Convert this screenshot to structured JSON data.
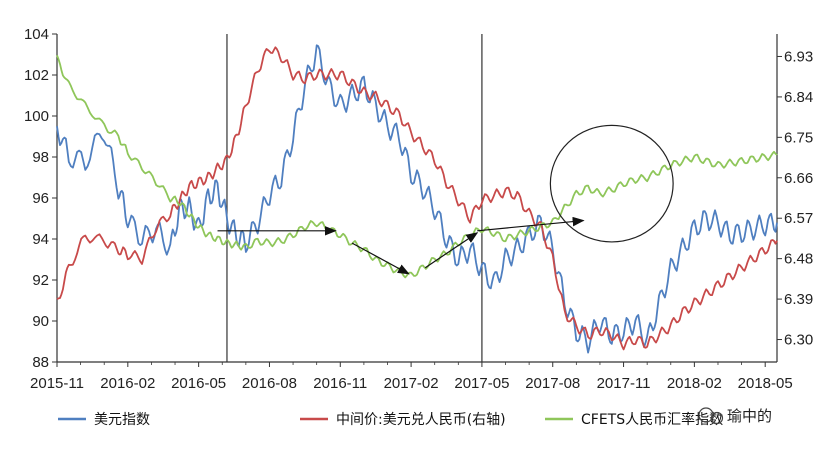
{
  "chart_data": {
    "type": "line",
    "title": "",
    "x_ticks": [
      "2015-11",
      "2016-02",
      "2016-05",
      "2016-08",
      "2016-11",
      "2017-02",
      "2017-05",
      "2017-08",
      "2017-11",
      "2018-02",
      "2018-05"
    ],
    "y_left": {
      "min": 88,
      "max": 104,
      "ticks": [
        "88",
        "90",
        "92",
        "94",
        "96",
        "98",
        "100",
        "102",
        "104"
      ]
    },
    "y_right": {
      "min": 6.25,
      "max": 6.98,
      "ticks": [
        "6.30",
        "6.39",
        "6.48",
        "6.57",
        "6.66",
        "6.75",
        "6.84",
        "6.93"
      ]
    },
    "vertical_markers": [
      "2016-06",
      "2017-05"
    ],
    "series": [
      {
        "name": "美元指数",
        "axis": "left",
        "color": "#4f7fc0",
        "x": [
          0,
          0.5,
          1.2,
          2.0,
          2.6,
          3.0,
          3.6,
          4.2,
          4.8,
          5.2,
          5.6,
          6.0,
          6.4,
          6.8,
          7.2,
          7.6,
          8.0,
          8.5,
          9.0,
          9.5,
          10.0,
          10.5,
          11.0,
          11.5,
          12.0,
          12.5,
          13.0,
          13.5,
          14.0,
          14.5,
          15.0,
          15.5,
          16.0,
          16.5,
          17.0,
          17.5,
          18.0,
          18.5,
          19.0,
          19.5,
          20.0,
          20.5,
          21.0,
          21.5,
          22.0,
          22.5,
          23.0,
          23.5,
          24.0,
          24.5,
          25.0,
          25.5,
          26.0,
          26.5,
          27.0,
          27.5,
          28.0,
          28.5,
          29.0,
          29.5,
          30.0,
          30.5
        ],
        "values": [
          99.5,
          98.0,
          97.8,
          99.3,
          96.5,
          95.0,
          94.0,
          94.5,
          93.5,
          95.5,
          95.5,
          94.5,
          96.0,
          96.5,
          95.0,
          94.2,
          93.8,
          94.8,
          96.2,
          97.0,
          99.0,
          101.5,
          103.2,
          101.5,
          100.5,
          101.0,
          101.5,
          100.5,
          99.5,
          99.0,
          97.2,
          96.5,
          95.5,
          94.0,
          93.0,
          93.5,
          92.5,
          91.8,
          93.0,
          93.5,
          94.2,
          94.8,
          93.5,
          91.0,
          89.5,
          89.0,
          90.0,
          89.3,
          89.5,
          90.0,
          89.0,
          90.8,
          92.5,
          93.5,
          94.5,
          95.0,
          94.8,
          94.2,
          94.3,
          94.5,
          94.7,
          94.8
        ]
      },
      {
        "name": "中间价:美元兑人民币(右轴)",
        "axis": "right",
        "color": "#c84a4a",
        "x": [
          0,
          0.5,
          1.2,
          2.0,
          2.6,
          3.0,
          3.6,
          4.2,
          4.8,
          5.2,
          5.6,
          6.0,
          6.4,
          6.8,
          7.2,
          7.6,
          8.0,
          8.5,
          9.0,
          9.5,
          10.0,
          10.5,
          11.0,
          11.5,
          12.0,
          12.5,
          13.0,
          13.5,
          14.0,
          14.5,
          15.0,
          15.5,
          16.0,
          16.5,
          17.0,
          17.5,
          18.0,
          18.5,
          19.0,
          19.5,
          20.0,
          20.5,
          21.0,
          21.5,
          22.0,
          22.5,
          23.0,
          23.5,
          24.0,
          24.5,
          25.0,
          25.5,
          26.0,
          26.5,
          27.0,
          27.5,
          28.0,
          28.5,
          29.0,
          29.5,
          30.0,
          30.5
        ],
        "values": [
          6.38,
          6.46,
          6.53,
          6.52,
          6.5,
          6.49,
          6.48,
          6.55,
          6.58,
          6.61,
          6.64,
          6.65,
          6.66,
          6.68,
          6.7,
          6.75,
          6.82,
          6.9,
          6.95,
          6.93,
          6.89,
          6.88,
          6.89,
          6.89,
          6.89,
          6.87,
          6.85,
          6.84,
          6.82,
          6.8,
          6.76,
          6.73,
          6.7,
          6.65,
          6.61,
          6.57,
          6.61,
          6.62,
          6.63,
          6.62,
          6.58,
          6.55,
          6.48,
          6.36,
          6.33,
          6.31,
          6.32,
          6.31,
          6.29,
          6.3,
          6.29,
          6.31,
          6.33,
          6.36,
          6.38,
          6.4,
          6.42,
          6.44,
          6.46,
          6.48,
          6.5,
          6.52
        ]
      },
      {
        "name": "CFETS人民币汇率指数",
        "axis": "left",
        "color": "#8fc65a",
        "x": [
          0,
          0.5,
          1.2,
          2.0,
          2.6,
          3.0,
          3.6,
          4.2,
          4.8,
          5.2,
          5.6,
          6.0,
          6.4,
          6.8,
          7.2,
          7.6,
          8.0,
          8.5,
          9.0,
          9.5,
          10.0,
          10.5,
          11.0,
          11.5,
          12.0,
          12.5,
          13.0,
          13.5,
          14.0,
          14.5,
          15.0,
          15.5,
          16.0,
          16.5,
          17.0,
          17.5,
          18.0,
          18.5,
          19.0,
          19.5,
          20.0,
          20.5,
          21.0,
          21.5,
          22.0,
          22.5,
          23.0,
          23.5,
          24.0,
          24.5,
          25.0,
          25.5,
          26.0,
          26.5,
          27.0,
          27.5,
          28.0,
          28.5,
          29.0,
          29.5,
          30.0,
          30.5
        ],
        "values": [
          102.8,
          101.5,
          100.5,
          99.5,
          99.0,
          98.2,
          97.5,
          96.8,
          96.0,
          95.8,
          95.2,
          94.6,
          94.2,
          94.0,
          93.8,
          93.7,
          93.6,
          93.9,
          93.8,
          93.9,
          94.2,
          94.6,
          94.8,
          94.5,
          94.2,
          93.8,
          93.5,
          93.0,
          92.7,
          92.4,
          92.2,
          92.6,
          93.0,
          93.3,
          93.8,
          94.2,
          94.5,
          94.3,
          94.0,
          94.2,
          94.4,
          94.6,
          94.8,
          95.5,
          96.2,
          96.5,
          96.2,
          96.4,
          96.7,
          96.9,
          97.0,
          97.3,
          97.6,
          97.8,
          98.0,
          97.8,
          97.6,
          97.7,
          97.8,
          97.9,
          98.0,
          98.1
        ]
      }
    ],
    "annotations": [
      {
        "type": "arrow",
        "from_x": 6.8,
        "from_y": 94.4,
        "to_x": 11.8,
        "to_y": 94.4
      },
      {
        "type": "arrow",
        "from_x": 12.5,
        "from_y": 93.8,
        "to_x": 14.9,
        "to_y": 92.3
      },
      {
        "type": "arrow",
        "from_x": 15.6,
        "from_y": 92.6,
        "to_x": 17.8,
        "to_y": 94.3
      },
      {
        "type": "arrow",
        "from_x": 17.8,
        "from_y": 94.4,
        "to_x": 22.3,
        "to_y": 94.9
      },
      {
        "type": "circle",
        "cx": 23.5,
        "cy": 96.7,
        "r_x": 2.6
      }
    ],
    "legend": [
      "美元指数",
      "中间价:美元兑人民币(右轴)",
      "CFETS人民币汇率指数"
    ]
  },
  "watermark": "瑜中的"
}
